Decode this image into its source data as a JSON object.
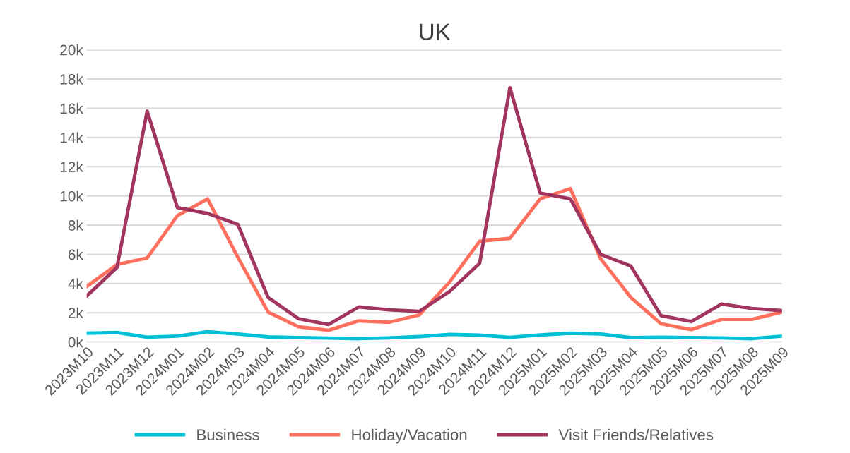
{
  "chart_data": {
    "type": "line",
    "title": "UK",
    "categories": [
      "2023M10",
      "2023M11",
      "2023M12",
      "2024M01",
      "2024M02",
      "2024M03",
      "2024M04",
      "2024M05",
      "2024M06",
      "2024M07",
      "2024M08",
      "2024M09",
      "2024M10",
      "2024M11",
      "2024M12",
      "2025M01",
      "2025M02",
      "2025M03",
      "2025M04",
      "2025M05",
      "2025M06",
      "2025M07",
      "2025M08",
      "2025M09"
    ],
    "series": [
      {
        "name": "Business",
        "color": "#00c0d5",
        "values": [
          600,
          650,
          330,
          400,
          700,
          550,
          350,
          300,
          270,
          230,
          280,
          370,
          520,
          470,
          320,
          480,
          600,
          550,
          300,
          330,
          300,
          280,
          230,
          400
        ]
      },
      {
        "name": "Holiday/Vacation",
        "color": "#ff6f5e",
        "values": [
          3800,
          5300,
          5750,
          8650,
          9800,
          5800,
          2050,
          1050,
          800,
          1450,
          1350,
          1850,
          4100,
          6900,
          7100,
          9800,
          10500,
          5700,
          3050,
          1250,
          850,
          1550,
          1550,
          2050
        ]
      },
      {
        "name": "Visit Friends/Relatives",
        "color": "#a23560",
        "values": [
          3150,
          5100,
          15800,
          9200,
          8800,
          8050,
          3050,
          1600,
          1200,
          2400,
          2200,
          2100,
          3450,
          5400,
          17400,
          10200,
          9800,
          6000,
          5200,
          1800,
          1400,
          2600,
          2300,
          2150
        ]
      }
    ],
    "ylim": [
      0,
      20000
    ],
    "yticks": [
      {
        "value": 0,
        "label": "0k"
      },
      {
        "value": 2000,
        "label": "2k"
      },
      {
        "value": 4000,
        "label": "4k"
      },
      {
        "value": 6000,
        "label": "6k"
      },
      {
        "value": 8000,
        "label": "8k"
      },
      {
        "value": 10000,
        "label": "10k"
      },
      {
        "value": 12000,
        "label": "12k"
      },
      {
        "value": 14000,
        "label": "14k"
      },
      {
        "value": 16000,
        "label": "16k"
      },
      {
        "value": 18000,
        "label": "18k"
      },
      {
        "value": 20000,
        "label": "20k"
      }
    ],
    "grid": "y",
    "legend": "bottom",
    "marker": "none",
    "line_style": "solid"
  }
}
